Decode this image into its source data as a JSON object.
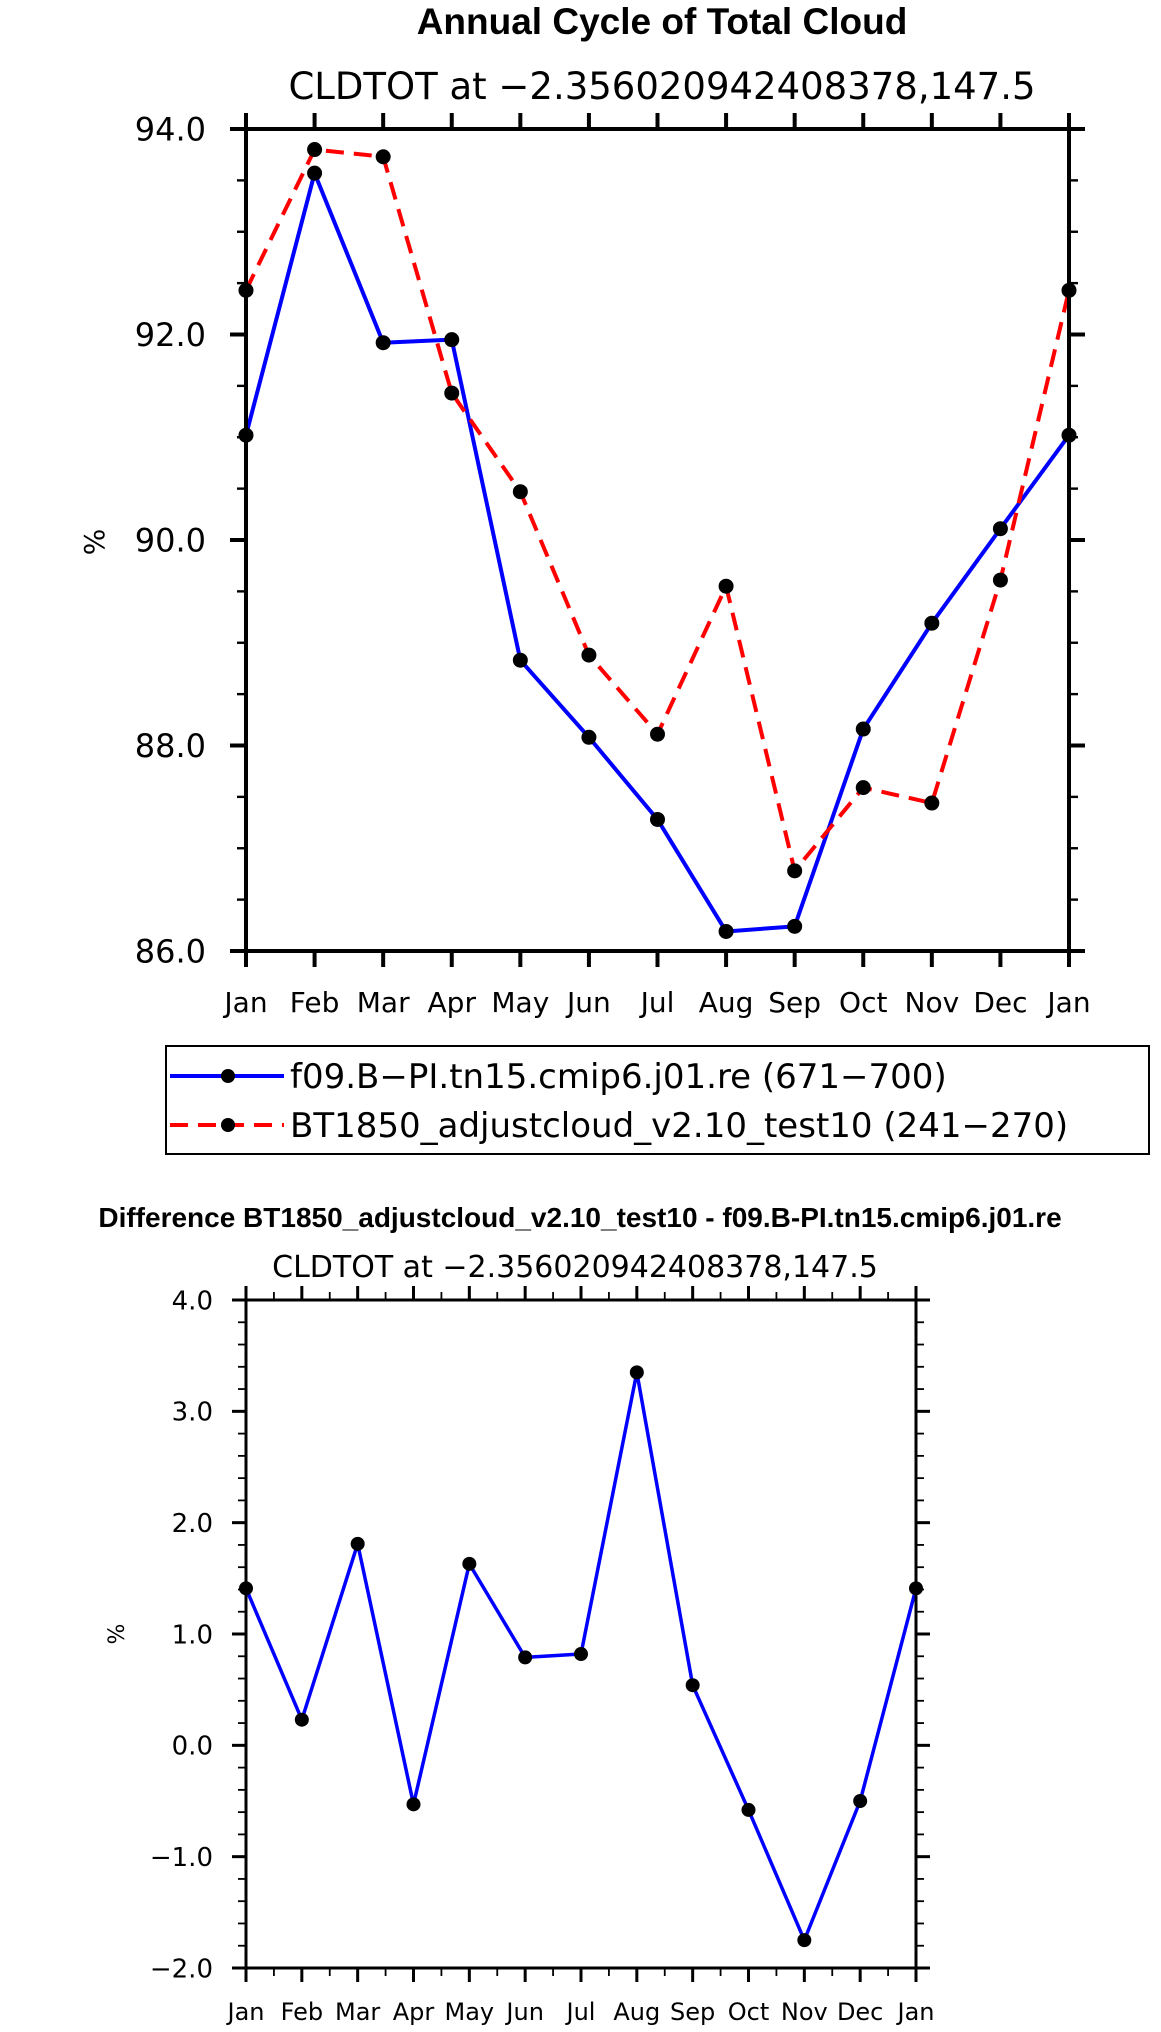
{
  "chart_data": [
    {
      "type": "line",
      "title": "Annual Cycle of Total Cloud",
      "subtitle": "CLDTOT at −2.356020942408378,147.5",
      "xlabel": "",
      "ylabel": "%",
      "categories": [
        "Jan",
        "Feb",
        "Mar",
        "Apr",
        "May",
        "Jun",
        "Jul",
        "Aug",
        "Sep",
        "Oct",
        "Nov",
        "Dec",
        "Jan"
      ],
      "ylim": [
        86.0,
        94.0
      ],
      "yticks": [
        "86.0",
        "88.0",
        "90.0",
        "92.0",
        "94.0"
      ],
      "series": [
        {
          "name": "f09.B−PI.tn15.cmip6.j01.re (671−700)",
          "color": "#0000ff",
          "dash": "solid",
          "values": [
            91.02,
            93.57,
            91.92,
            91.95,
            88.83,
            88.08,
            87.28,
            86.19,
            86.24,
            88.16,
            89.19,
            90.11,
            91.02
          ]
        },
        {
          "name": "BT1850_adjustcloud_v2.10_test10 (241−270)",
          "color": "#ff0000",
          "dash": "dashed",
          "values": [
            92.43,
            93.8,
            93.73,
            91.43,
            90.47,
            88.88,
            88.11,
            89.55,
            86.78,
            87.59,
            87.44,
            89.61,
            92.43
          ]
        }
      ],
      "legend": "bottom"
    },
    {
      "type": "line",
      "title": "Difference BT1850_adjustcloud_v2.10_test10 - f09.B-PI.tn15.cmip6.j01.re",
      "subtitle": "CLDTOT at −2.356020942408378,147.5",
      "xlabel": "",
      "ylabel": "%",
      "categories": [
        "Jan",
        "Feb",
        "Mar",
        "Apr",
        "May",
        "Jun",
        "Jul",
        "Aug",
        "Sep",
        "Oct",
        "Nov",
        "Dec",
        "Jan"
      ],
      "ylim": [
        -2.0,
        4.0
      ],
      "yticks": [
        "−2.0",
        "−1.0",
        "0.0",
        "1.0",
        "2.0",
        "3.0",
        "4.0"
      ],
      "series": [
        {
          "name": "Difference",
          "color": "#0000ff",
          "dash": "solid",
          "values": [
            1.41,
            0.23,
            1.81,
            -0.53,
            1.63,
            0.79,
            0.82,
            3.35,
            0.54,
            -0.58,
            -1.75,
            -0.5,
            1.41
          ]
        }
      ]
    }
  ]
}
